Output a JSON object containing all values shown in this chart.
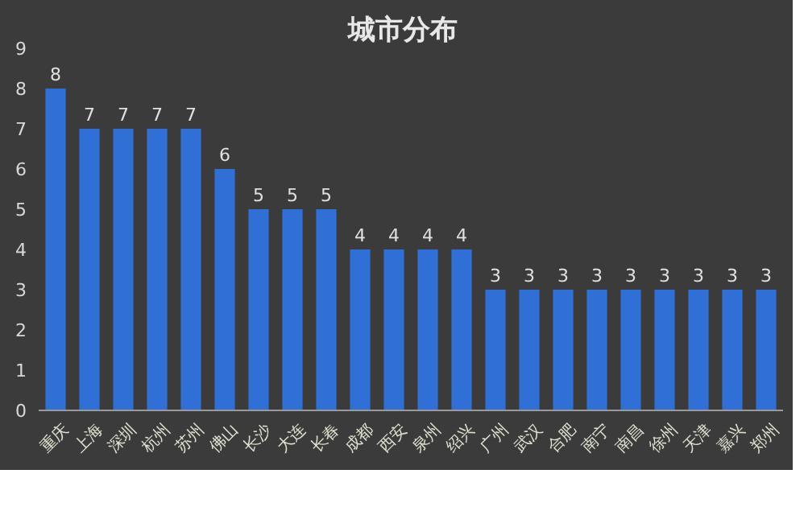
{
  "chart_data": {
    "type": "bar",
    "title": "城市分布",
    "categories": [
      "重庆",
      "上海",
      "深圳",
      "杭州",
      "苏州",
      "佛山",
      "长沙",
      "大连",
      "长春",
      "成都",
      "西安",
      "泉州",
      "绍兴",
      "广州",
      "武汉",
      "合肥",
      "南宁",
      "南昌",
      "徐州",
      "天津",
      "嘉兴",
      "郑州"
    ],
    "values": [
      8,
      7,
      7,
      7,
      7,
      6,
      5,
      5,
      5,
      4,
      4,
      4,
      4,
      3,
      3,
      3,
      3,
      3,
      3,
      3,
      3,
      3
    ],
    "color": "#2f6fd6",
    "ylim": [
      0,
      9
    ],
    "yticks": [
      0,
      1,
      2,
      3,
      4,
      5,
      6,
      7,
      8,
      9
    ],
    "data_labels": true
  }
}
